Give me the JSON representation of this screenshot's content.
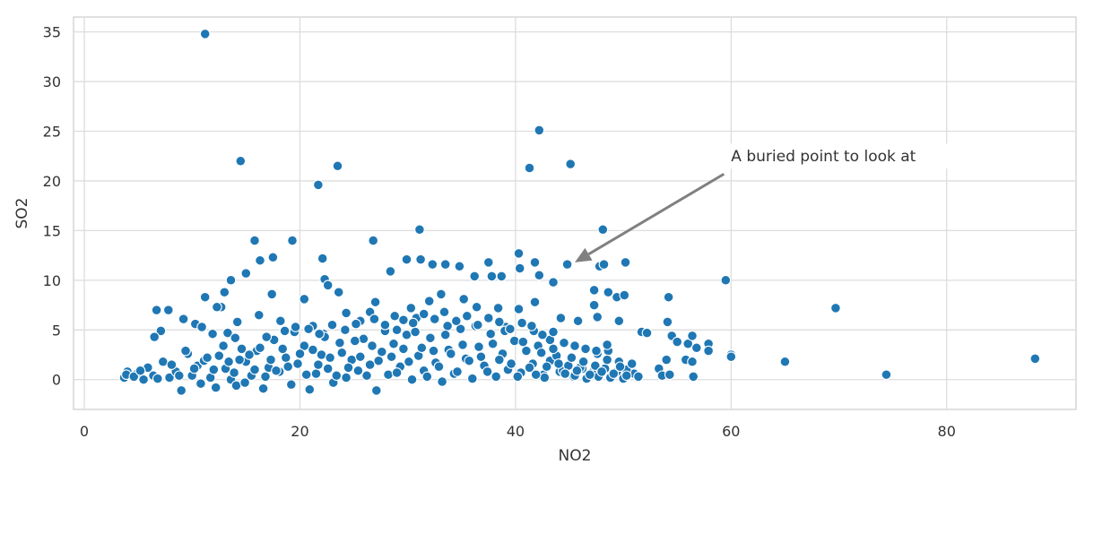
{
  "chart_data": {
    "type": "scatter",
    "title": "",
    "xlabel": "NO2",
    "ylabel": "SO2",
    "xlim": [
      -1,
      92
    ],
    "ylim": [
      -3,
      36.5
    ],
    "xticks": [
      "0",
      "20",
      "40",
      "60",
      "80"
    ],
    "yticks": [
      "0",
      "5",
      "10",
      "15",
      "20",
      "25",
      "30",
      "35"
    ],
    "grid": true,
    "point_color": "#1f77b4",
    "point_edge_color": "#ffffff",
    "annotation": {
      "text": "A buried point to look at",
      "arrow_tip": [
        45.5,
        11.8
      ],
      "text_anchor": [
        60,
        22.5
      ],
      "arrow_color": "#808080"
    },
    "points": [
      [
        11.2,
        34.8
      ],
      [
        14.5,
        22.0
      ],
      [
        23.5,
        21.5
      ],
      [
        21.7,
        19.6
      ],
      [
        42.2,
        25.1
      ],
      [
        41.3,
        21.3
      ],
      [
        45.1,
        21.7
      ],
      [
        15.8,
        14.0
      ],
      [
        19.3,
        14.0
      ],
      [
        26.8,
        14.0
      ],
      [
        31.1,
        15.1
      ],
      [
        48.1,
        15.1
      ],
      [
        17.5,
        12.3
      ],
      [
        16.3,
        12.0
      ],
      [
        22.1,
        12.2
      ],
      [
        29.9,
        12.1
      ],
      [
        31.2,
        12.1
      ],
      [
        32.3,
        11.6
      ],
      [
        33.5,
        11.6
      ],
      [
        34.8,
        11.4
      ],
      [
        37.5,
        11.8
      ],
      [
        40.3,
        12.7
      ],
      [
        40.4,
        11.2
      ],
      [
        41.8,
        11.8
      ],
      [
        42.2,
        10.5
      ],
      [
        44.8,
        11.6
      ],
      [
        47.8,
        11.4
      ],
      [
        48.2,
        11.6
      ],
      [
        50.2,
        11.8
      ],
      [
        43.5,
        9.8
      ],
      [
        47.3,
        9.0
      ],
      [
        59.5,
        10.0
      ],
      [
        15.0,
        10.7
      ],
      [
        13.6,
        10.0
      ],
      [
        22.3,
        10.1
      ],
      [
        28.4,
        10.9
      ],
      [
        36.2,
        10.4
      ],
      [
        37.8,
        10.4
      ],
      [
        38.7,
        10.4
      ],
      [
        22.6,
        9.5
      ],
      [
        13.0,
        8.8
      ],
      [
        17.4,
        8.6
      ],
      [
        23.6,
        8.8
      ],
      [
        20.4,
        8.1
      ],
      [
        11.2,
        8.3
      ],
      [
        12.7,
        7.3
      ],
      [
        27.0,
        7.8
      ],
      [
        30.3,
        7.2
      ],
      [
        32.0,
        7.9
      ],
      [
        33.1,
        8.6
      ],
      [
        35.2,
        8.1
      ],
      [
        36.4,
        7.3
      ],
      [
        38.4,
        7.2
      ],
      [
        40.3,
        7.1
      ],
      [
        41.8,
        7.8
      ],
      [
        44.2,
        6.2
      ],
      [
        45.8,
        5.9
      ],
      [
        47.6,
        6.3
      ],
      [
        48.6,
        8.8
      ],
      [
        49.4,
        8.3
      ],
      [
        50.1,
        8.5
      ],
      [
        49.6,
        5.9
      ],
      [
        47.3,
        7.5
      ],
      [
        6.7,
        7.0
      ],
      [
        7.8,
        7.0
      ],
      [
        7.1,
        4.9
      ],
      [
        6.5,
        4.3
      ],
      [
        9.2,
        6.1
      ],
      [
        12.3,
        7.3
      ],
      [
        14.2,
        5.8
      ],
      [
        16.2,
        6.5
      ],
      [
        18.2,
        5.9
      ],
      [
        21.2,
        5.4
      ],
      [
        22.2,
        4.6
      ],
      [
        24.3,
        6.7
      ],
      [
        25.6,
        5.9
      ],
      [
        26.5,
        6.8
      ],
      [
        29.0,
        5.0
      ],
      [
        30.8,
        6.2
      ],
      [
        33.7,
        5.4
      ],
      [
        39.1,
        5.3
      ],
      [
        41.7,
        4.9
      ],
      [
        43.2,
        4.0
      ],
      [
        51.7,
        4.8
      ],
      [
        52.2,
        4.7
      ],
      [
        54.2,
        8.3
      ],
      [
        54.1,
        5.8
      ],
      [
        54.5,
        4.4
      ],
      [
        55.0,
        3.8
      ],
      [
        56.0,
        3.6
      ],
      [
        56.4,
        4.4
      ],
      [
        56.8,
        3.2
      ],
      [
        57.9,
        3.6
      ],
      [
        57.9,
        2.9
      ],
      [
        55.8,
        2.0
      ],
      [
        56.4,
        1.8
      ],
      [
        54.0,
        2.0
      ],
      [
        53.3,
        1.1
      ],
      [
        53.6,
        0.4
      ],
      [
        54.3,
        0.5
      ],
      [
        56.5,
        0.3
      ],
      [
        60.0,
        2.5
      ],
      [
        60.0,
        2.3
      ],
      [
        65.0,
        1.8
      ],
      [
        69.7,
        7.2
      ],
      [
        74.4,
        0.5
      ],
      [
        88.2,
        2.1
      ],
      [
        51.0,
        0.6
      ],
      [
        50.3,
        1.0
      ],
      [
        49.6,
        1.8
      ],
      [
        48.6,
        2.9
      ],
      [
        47.6,
        2.6
      ],
      [
        46.2,
        1.1
      ],
      [
        45.4,
        0.3
      ],
      [
        44.1,
        0.8
      ],
      [
        42.6,
        0.5
      ],
      [
        3.7,
        0.2
      ],
      [
        4.0,
        0.8
      ],
      [
        4.9,
        0.6
      ],
      [
        5.5,
        0.0
      ],
      [
        5.9,
        1.2
      ],
      [
        6.4,
        0.4
      ],
      [
        7.3,
        1.8
      ],
      [
        7.9,
        0.2
      ],
      [
        8.5,
        0.8
      ],
      [
        9.0,
        -1.1
      ],
      [
        9.6,
        2.6
      ],
      [
        10.0,
        0.4
      ],
      [
        10.5,
        1.4
      ],
      [
        11.1,
        1.9
      ],
      [
        11.7,
        0.2
      ],
      [
        12.2,
        -0.8
      ],
      [
        12.5,
        2.4
      ],
      [
        13.1,
        1.1
      ],
      [
        13.6,
        0.0
      ],
      [
        14.1,
        -0.6
      ],
      [
        14.6,
        3.1
      ],
      [
        15.0,
        1.8
      ],
      [
        15.5,
        0.4
      ],
      [
        16.0,
        2.9
      ],
      [
        16.6,
        -0.9
      ],
      [
        17.1,
        1.2
      ],
      [
        17.6,
        4.0
      ],
      [
        18.1,
        0.8
      ],
      [
        18.7,
        2.2
      ],
      [
        19.2,
        -0.5
      ],
      [
        19.8,
        1.6
      ],
      [
        20.4,
        3.4
      ],
      [
        20.9,
        -1.0
      ],
      [
        21.5,
        0.6
      ],
      [
        22.0,
        2.5
      ],
      [
        22.6,
        1.1
      ],
      [
        23.1,
        -0.3
      ],
      [
        23.7,
        3.7
      ],
      [
        24.3,
        0.2
      ],
      [
        24.8,
        2.0
      ],
      [
        25.4,
        0.9
      ],
      [
        25.9,
        4.1
      ],
      [
        26.5,
        1.5
      ],
      [
        27.1,
        -1.1
      ],
      [
        27.6,
        2.8
      ],
      [
        28.2,
        0.5
      ],
      [
        28.7,
        3.6
      ],
      [
        29.3,
        1.3
      ],
      [
        29.9,
        4.5
      ],
      [
        30.4,
        0.0
      ],
      [
        31.0,
        2.4
      ],
      [
        31.5,
        0.9
      ],
      [
        32.1,
        4.2
      ],
      [
        32.6,
        1.7
      ],
      [
        33.2,
        -0.2
      ],
      [
        33.8,
        3.0
      ],
      [
        34.3,
        0.6
      ],
      [
        34.9,
        5.1
      ],
      [
        35.4,
        2.1
      ],
      [
        36.0,
        0.1
      ],
      [
        36.6,
        3.3
      ],
      [
        37.1,
        1.4
      ],
      [
        37.7,
        4.6
      ],
      [
        38.2,
        0.3
      ],
      [
        38.8,
        2.6
      ],
      [
        39.3,
        1.0
      ],
      [
        39.9,
        3.9
      ],
      [
        40.5,
        0.7
      ],
      [
        41.0,
        2.9
      ],
      [
        41.6,
        1.6
      ],
      [
        42.1,
        3.4
      ],
      [
        42.7,
        0.2
      ],
      [
        43.2,
        1.9
      ],
      [
        43.8,
        2.4
      ],
      [
        44.4,
        0.9
      ],
      [
        44.9,
        1.4
      ],
      [
        45.5,
        0.4
      ],
      [
        46.0,
        1.2
      ],
      [
        46.6,
        0.1
      ],
      [
        47.1,
        0.7
      ],
      [
        47.7,
        0.3
      ],
      [
        48.3,
        1.1
      ],
      [
        48.8,
        0.2
      ],
      [
        49.4,
        0.8
      ],
      [
        50.0,
        0.1
      ],
      [
        3.9,
        0.5
      ],
      [
        4.6,
        0.3
      ],
      [
        5.2,
        0.9
      ],
      [
        6.8,
        0.1
      ],
      [
        8.1,
        1.5
      ],
      [
        8.8,
        0.4
      ],
      [
        9.4,
        2.9
      ],
      [
        10.2,
        1.1
      ],
      [
        10.8,
        -0.4
      ],
      [
        11.4,
        2.2
      ],
      [
        12.0,
        1.0
      ],
      [
        12.9,
        3.4
      ],
      [
        13.4,
        1.8
      ],
      [
        13.9,
        0.7
      ],
      [
        14.4,
        2.0
      ],
      [
        14.9,
        -0.3
      ],
      [
        15.3,
        2.5
      ],
      [
        15.8,
        1.0
      ],
      [
        16.3,
        3.2
      ],
      [
        16.8,
        0.3
      ],
      [
        17.3,
        2.0
      ],
      [
        17.8,
        0.9
      ],
      [
        18.4,
        3.1
      ],
      [
        18.9,
        1.3
      ],
      [
        19.5,
        4.8
      ],
      [
        20.0,
        2.6
      ],
      [
        20.6,
        0.5
      ],
      [
        21.2,
        3.0
      ],
      [
        21.7,
        1.5
      ],
      [
        22.3,
        4.3
      ],
      [
        22.8,
        2.2
      ],
      [
        23.4,
        0.4
      ],
      [
        23.9,
        2.7
      ],
      [
        24.5,
        1.2
      ],
      [
        25.1,
        3.9
      ],
      [
        25.6,
        2.3
      ],
      [
        26.2,
        0.4
      ],
      [
        26.7,
        3.4
      ],
      [
        27.3,
        1.9
      ],
      [
        27.9,
        4.9
      ],
      [
        28.5,
        2.3
      ],
      [
        29.0,
        0.7
      ],
      [
        29.6,
        3.1
      ],
      [
        30.1,
        1.8
      ],
      [
        30.7,
        4.8
      ],
      [
        31.3,
        3.2
      ],
      [
        31.8,
        0.3
      ],
      [
        32.4,
        2.9
      ],
      [
        32.9,
        1.3
      ],
      [
        33.5,
        4.5
      ],
      [
        34.0,
        2.6
      ],
      [
        34.6,
        0.8
      ],
      [
        35.1,
        3.5
      ],
      [
        35.7,
        1.9
      ],
      [
        36.3,
        5.4
      ],
      [
        36.8,
        2.3
      ],
      [
        37.4,
        0.8
      ],
      [
        37.9,
        3.6
      ],
      [
        38.5,
        2.0
      ],
      [
        39.0,
        4.9
      ],
      [
        39.6,
        1.6
      ],
      [
        40.2,
        0.3
      ],
      [
        40.7,
        3.8
      ],
      [
        41.3,
        1.2
      ],
      [
        41.9,
        0.5
      ],
      [
        42.4,
        2.7
      ],
      [
        42.9,
        1.3
      ],
      [
        43.5,
        3.1
      ],
      [
        44.0,
        1.6
      ],
      [
        44.6,
        0.6
      ],
      [
        45.2,
        2.2
      ],
      [
        45.7,
        0.9
      ],
      [
        46.3,
        1.8
      ],
      [
        46.9,
        0.5
      ],
      [
        47.4,
        1.4
      ],
      [
        48.0,
        0.8
      ],
      [
        48.5,
        2.0
      ],
      [
        49.1,
        0.6
      ],
      [
        49.7,
        1.3
      ],
      [
        50.3,
        0.4
      ],
      [
        50.8,
        1.6
      ],
      [
        51.4,
        0.3
      ],
      [
        10.3,
        5.6
      ],
      [
        10.9,
        5.3
      ],
      [
        11.9,
        4.6
      ],
      [
        13.3,
        4.7
      ],
      [
        14.0,
        4.2
      ],
      [
        16.9,
        4.3
      ],
      [
        18.6,
        4.9
      ],
      [
        19.6,
        5.3
      ],
      [
        20.8,
        5.1
      ],
      [
        21.8,
        4.6
      ],
      [
        23.0,
        5.5
      ],
      [
        24.2,
        5.0
      ],
      [
        25.2,
        5.6
      ],
      [
        26.9,
        6.1
      ],
      [
        27.9,
        5.5
      ],
      [
        28.8,
        6.4
      ],
      [
        29.6,
        6.0
      ],
      [
        30.5,
        5.7
      ],
      [
        31.5,
        6.6
      ],
      [
        32.5,
        6.1
      ],
      [
        33.4,
        6.8
      ],
      [
        34.5,
        5.9
      ],
      [
        35.5,
        6.4
      ],
      [
        36.5,
        5.5
      ],
      [
        37.5,
        6.2
      ],
      [
        38.5,
        5.8
      ],
      [
        39.5,
        5.1
      ],
      [
        40.6,
        5.7
      ],
      [
        41.5,
        5.4
      ],
      [
        42.5,
        4.5
      ],
      [
        43.5,
        4.8
      ],
      [
        44.5,
        3.7
      ],
      [
        45.5,
        3.4
      ],
      [
        46.5,
        3.1
      ],
      [
        47.5,
        2.9
      ],
      [
        48.5,
        3.5
      ]
    ]
  }
}
